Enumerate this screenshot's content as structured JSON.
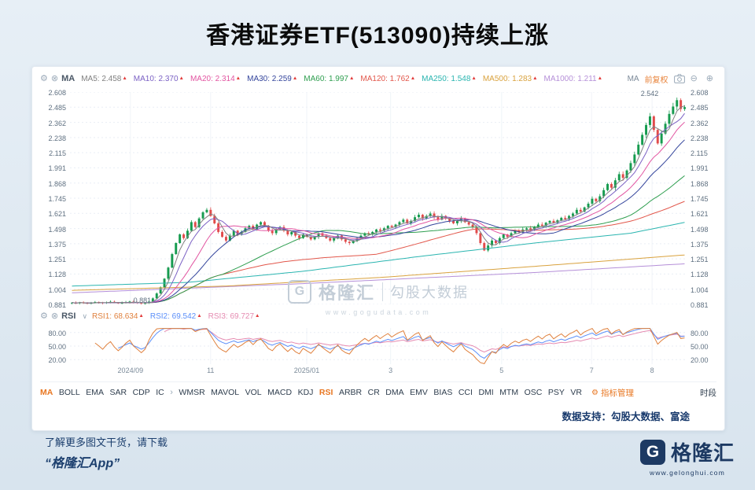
{
  "title": "香港证券ETF(513090)持续上涨",
  "icons": {
    "gear": "⚙",
    "remove": "⊗",
    "chevron_down": "∨",
    "zoom_in": "⊕",
    "zoom_out": "⊖",
    "up_triangle": "▲"
  },
  "main_bar": {
    "name": "MA",
    "right_type_label": "MA",
    "adjust_label": "前复权"
  },
  "rsi_bar": {
    "name": "RSI"
  },
  "tabs_bar": {
    "items": [
      {
        "label": "MA",
        "active": true
      },
      {
        "label": "BOLL"
      },
      {
        "label": "EMA"
      },
      {
        "label": "SAR"
      },
      {
        "label": "CDP"
      },
      {
        "label": "IC"
      },
      {
        "label": "›",
        "chevron": true
      },
      {
        "label": "WMSR"
      },
      {
        "label": "MAVOL"
      },
      {
        "label": "VOL"
      },
      {
        "label": "MACD"
      },
      {
        "label": "KDJ"
      },
      {
        "label": "RSI",
        "active": true
      },
      {
        "label": "ARBR"
      },
      {
        "label": "CR"
      },
      {
        "label": "DMA"
      },
      {
        "label": "EMV"
      },
      {
        "label": "BIAS"
      },
      {
        "label": "CCI"
      },
      {
        "label": "DMI"
      },
      {
        "label": "MTM"
      },
      {
        "label": "OSC"
      },
      {
        "label": "PSY"
      },
      {
        "label": "VR"
      }
    ],
    "manage_label": "指标管理",
    "period_label": "时段"
  },
  "support_text": "数据支持：勾股大数据、富途",
  "watermark": {
    "logo_letter": "G",
    "brand": "格隆汇",
    "partner": "勾股大数据",
    "url": "www.gogudata.com"
  },
  "footer": {
    "promo_line1": "了解更多图文干货，请下载",
    "promo_line2": "“格隆汇App”",
    "logo_letter": "G",
    "brand_name": "格隆汇",
    "brand_url": "www.gelonghui.com"
  },
  "chart_data": {
    "type": "candlestick",
    "title": "香港证券ETF(513090)持续上涨",
    "y_ticks": [
      "2.608",
      "2.485",
      "2.362",
      "2.238",
      "2.115",
      "1.991",
      "1.868",
      "1.745",
      "1.621",
      "1.498",
      "1.375",
      "1.251",
      "1.128",
      "1.004",
      "0.881"
    ],
    "y_min": 0.881,
    "y_max": 2.608,
    "x_ticks": [
      {
        "label": "2024/09",
        "pos": 0.098
      },
      {
        "label": "11",
        "pos": 0.228
      },
      {
        "label": "2025/01",
        "pos": 0.384
      },
      {
        "label": "3",
        "pos": 0.52
      },
      {
        "label": "5",
        "pos": 0.7
      },
      {
        "label": "7",
        "pos": 0.846
      },
      {
        "label": "8",
        "pos": 0.944
      }
    ],
    "candle_up_color": "#169b4f",
    "candle_down_color": "#e14b4b",
    "max_label": "2.542",
    "min_label": "0.881",
    "closes": [
      0.895,
      0.89,
      0.898,
      0.893,
      0.887,
      0.894,
      0.9,
      0.896,
      0.891,
      0.897,
      0.902,
      0.895,
      0.889,
      0.893,
      0.899,
      0.904,
      0.897,
      0.892,
      0.886,
      0.89,
      0.905,
      0.93,
      0.97,
      1.02,
      1.09,
      1.18,
      1.29,
      1.38,
      1.45,
      1.42,
      1.48,
      1.55,
      1.51,
      1.58,
      1.63,
      1.65,
      1.6,
      1.54,
      1.47,
      1.43,
      1.4,
      1.44,
      1.48,
      1.45,
      1.47,
      1.5,
      1.52,
      1.49,
      1.53,
      1.55,
      1.52,
      1.48,
      1.46,
      1.49,
      1.51,
      1.48,
      1.45,
      1.47,
      1.44,
      1.42,
      1.45,
      1.43,
      1.41,
      1.43,
      1.46,
      1.44,
      1.42,
      1.4,
      1.42,
      1.44,
      1.41,
      1.39,
      1.38,
      1.4,
      1.42,
      1.44,
      1.46,
      1.45,
      1.47,
      1.49,
      1.48,
      1.5,
      1.52,
      1.51,
      1.53,
      1.55,
      1.57,
      1.54,
      1.56,
      1.59,
      1.61,
      1.58,
      1.6,
      1.62,
      1.59,
      1.57,
      1.6,
      1.58,
      1.56,
      1.54,
      1.56,
      1.58,
      1.55,
      1.53,
      1.51,
      1.46,
      1.38,
      1.32,
      1.36,
      1.4,
      1.38,
      1.42,
      1.45,
      1.43,
      1.46,
      1.48,
      1.47,
      1.49,
      1.5,
      1.49,
      1.51,
      1.53,
      1.52,
      1.545,
      1.56,
      1.545,
      1.565,
      1.585,
      1.575,
      1.6,
      1.62,
      1.65,
      1.635,
      1.67,
      1.7,
      1.74,
      1.72,
      1.76,
      1.81,
      1.86,
      1.83,
      1.89,
      1.94,
      1.91,
      1.97,
      2.03,
      2.1,
      2.18,
      2.26,
      2.34,
      2.41,
      2.3,
      2.19,
      2.27,
      2.35,
      2.43,
      2.49,
      2.542,
      2.47,
      2.485
    ],
    "ma_series": [
      {
        "name": "MA5",
        "value": "2.458",
        "color": "#808080",
        "window": 4
      },
      {
        "name": "MA10",
        "value": "2.370",
        "color": "#7b61c4",
        "window": 7
      },
      {
        "name": "MA20",
        "value": "2.314",
        "color": "#e255a1",
        "window": 13
      },
      {
        "name": "MA30",
        "value": "2.259",
        "color": "#34459c",
        "window": 20
      },
      {
        "name": "MA60",
        "value": "1.997",
        "color": "#2e9e4f",
        "window": 40
      },
      {
        "name": "MA120",
        "value": "1.762",
        "color": "#e2574b",
        "window": 80
      },
      {
        "name": "MA250",
        "value": "1.548",
        "color": "#2ab5b0",
        "anchors": [
          [
            0,
            1.03
          ],
          [
            30,
            1.06
          ],
          [
            60,
            1.15
          ],
          [
            90,
            1.27
          ],
          [
            120,
            1.38
          ],
          [
            145,
            1.46
          ],
          [
            159,
            1.548
          ]
        ]
      },
      {
        "name": "MA500",
        "value": "1.283",
        "color": "#d9a23e",
        "anchors": [
          [
            0,
            0.995
          ],
          [
            40,
            1.03
          ],
          [
            80,
            1.1
          ],
          [
            120,
            1.19
          ],
          [
            159,
            1.283
          ]
        ]
      },
      {
        "name": "MA1000",
        "value": "1.211",
        "color": "#b58fd8",
        "anchors": [
          [
            0,
            0.975
          ],
          [
            60,
            1.05
          ],
          [
            120,
            1.14
          ],
          [
            159,
            1.211
          ]
        ]
      }
    ],
    "rsi": {
      "y_ticks": [
        "80.00",
        "50.00",
        "20.00"
      ],
      "series": [
        {
          "name": "RSI1",
          "value": "68.634",
          "color": "#e0823f",
          "period": 6
        },
        {
          "name": "RSI2",
          "value": "69.542",
          "color": "#5b8ff9",
          "period": 12
        },
        {
          "name": "RSI3",
          "value": "69.727",
          "color": "#e58bb1",
          "period": 24
        }
      ]
    }
  }
}
